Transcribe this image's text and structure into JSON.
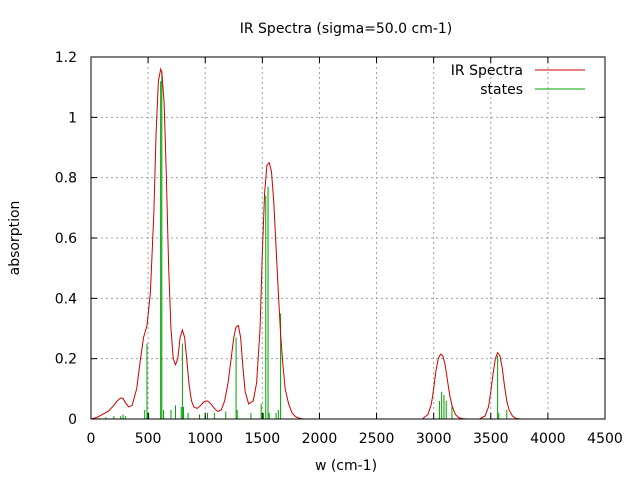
{
  "chart_data": {
    "type": "line",
    "title": "IR Spectra (sigma=50.0 cm-1)",
    "xlabel": "w (cm-1)",
    "ylabel": "absorption",
    "xlim": [
      0,
      4500
    ],
    "ylim": [
      0,
      1.2
    ],
    "xticks": [
      0,
      500,
      1000,
      1500,
      2000,
      2500,
      3000,
      3500,
      4000,
      4500
    ],
    "xtick_labels": [
      "0",
      "500",
      "1000",
      "1500",
      "2000",
      "2500",
      "3000",
      "3500",
      "4000",
      "4500"
    ],
    "yticks": [
      0,
      0.2,
      0.4,
      0.6,
      0.8,
      1.0,
      1.2
    ],
    "ytick_labels": [
      "0",
      "0.2",
      "0.4",
      "0.6",
      "0.8",
      "1",
      "1.2"
    ],
    "grid": true,
    "legend_position": "top-right",
    "series": [
      {
        "name": "IR Spectra",
        "kind": "curve",
        "color": "#cc0000",
        "x": [
          0,
          50,
          100,
          150,
          200,
          230,
          260,
          280,
          300,
          330,
          360,
          400,
          430,
          460,
          490,
          520,
          550,
          570,
          590,
          610,
          620,
          640,
          660,
          680,
          700,
          720,
          740,
          760,
          780,
          800,
          820,
          840,
          860,
          880,
          900,
          930,
          960,
          990,
          1020,
          1050,
          1080,
          1110,
          1140,
          1170,
          1200,
          1220,
          1250,
          1270,
          1290,
          1310,
          1330,
          1350,
          1380,
          1420,
          1450,
          1480,
          1500,
          1520,
          1540,
          1560,
          1580,
          1600,
          1620,
          1640,
          1660,
          1680,
          1700,
          1730,
          1760,
          1790,
          1820,
          1860,
          1900,
          2000,
          2500,
          2900,
          2950,
          2980,
          3000,
          3020,
          3040,
          3060,
          3080,
          3100,
          3120,
          3140,
          3160,
          3190,
          3220,
          3260,
          3300,
          3400,
          3450,
          3480,
          3500,
          3520,
          3540,
          3560,
          3580,
          3600,
          3620,
          3640,
          3660,
          3690,
          3720,
          3760,
          3800,
          4300
        ],
        "y": [
          0.0,
          0.005,
          0.015,
          0.025,
          0.045,
          0.06,
          0.07,
          0.068,
          0.055,
          0.04,
          0.045,
          0.1,
          0.19,
          0.27,
          0.31,
          0.42,
          0.68,
          0.95,
          1.12,
          1.16,
          1.15,
          1.05,
          0.8,
          0.5,
          0.3,
          0.2,
          0.18,
          0.2,
          0.27,
          0.295,
          0.27,
          0.19,
          0.11,
          0.06,
          0.04,
          0.035,
          0.045,
          0.058,
          0.06,
          0.05,
          0.035,
          0.025,
          0.03,
          0.06,
          0.12,
          0.18,
          0.27,
          0.305,
          0.31,
          0.27,
          0.17,
          0.09,
          0.05,
          0.06,
          0.12,
          0.3,
          0.55,
          0.75,
          0.84,
          0.85,
          0.82,
          0.72,
          0.57,
          0.42,
          0.28,
          0.18,
          0.1,
          0.05,
          0.02,
          0.008,
          0.003,
          0.0,
          0.0,
          0.0,
          0.0,
          0.0,
          0.015,
          0.05,
          0.1,
          0.16,
          0.2,
          0.215,
          0.21,
          0.18,
          0.13,
          0.08,
          0.045,
          0.015,
          0.004,
          0.001,
          0.0,
          0.0,
          0.01,
          0.04,
          0.09,
          0.15,
          0.2,
          0.22,
          0.21,
          0.17,
          0.11,
          0.06,
          0.03,
          0.01,
          0.002,
          0.0,
          0.0,
          0.0
        ]
      },
      {
        "name": "states",
        "kind": "sticks",
        "color": "#00a000",
        "x": [
          70,
          130,
          200,
          260,
          280,
          300,
          470,
          490,
          505,
          610,
          620,
          635,
          700,
          740,
          790,
          800,
          810,
          850,
          950,
          1000,
          1020,
          1080,
          1180,
          1270,
          1280,
          1400,
          1490,
          1510,
          1530,
          1550,
          1560,
          1620,
          1640,
          1660,
          3050,
          3070,
          3090,
          3110,
          3160,
          3560,
          3570,
          3640
        ],
        "y": [
          0.003,
          0.006,
          0.01,
          0.01,
          0.015,
          0.01,
          0.03,
          0.25,
          0.02,
          1.12,
          1.15,
          0.03,
          0.03,
          0.045,
          0.04,
          0.25,
          0.04,
          0.02,
          0.015,
          0.01,
          0.02,
          0.02,
          0.025,
          0.27,
          0.03,
          0.02,
          0.05,
          0.02,
          0.74,
          0.77,
          0.02,
          0.02,
          0.03,
          0.35,
          0.06,
          0.09,
          0.08,
          0.06,
          0.04,
          0.21,
          0.02,
          0.03
        ]
      }
    ]
  }
}
